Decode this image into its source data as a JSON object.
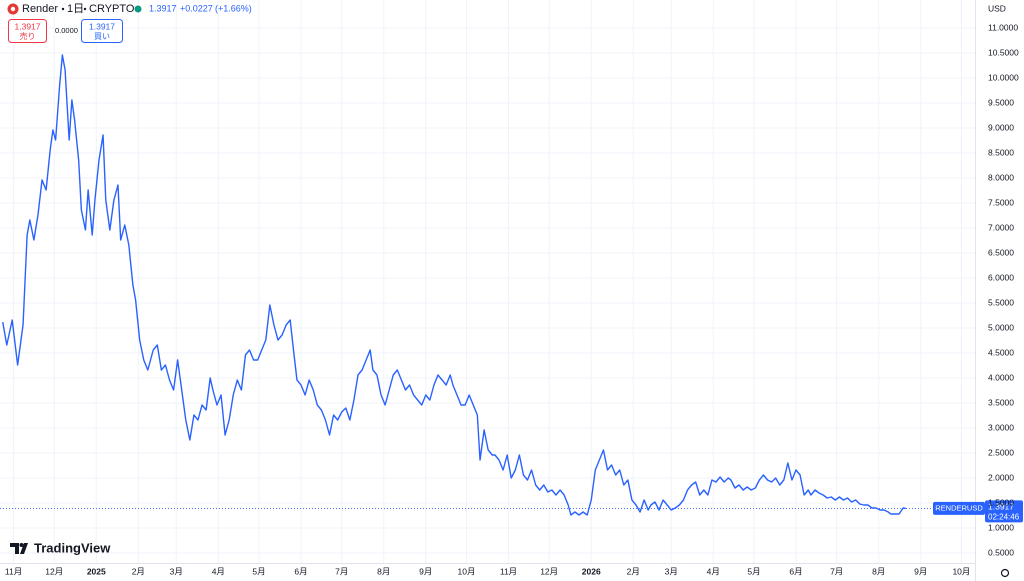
{
  "chart_data": {
    "type": "line",
    "symbol": "Render",
    "interval": "1日",
    "exchange": "CRYPTO",
    "last_value": 1.3917,
    "change": "+0.0227",
    "change_pct": "(+1.66%)",
    "sell_label": "売り",
    "buy_label": "買い",
    "spread": "0.0000",
    "currency": "USD",
    "countdown": "02:24:46",
    "brand": "TradingView",
    "grid": true,
    "xlim": [
      -10,
      709
    ],
    "ylim": [
      0.3,
      11.56
    ],
    "xticks": [
      {
        "value": 0,
        "label": "11月"
      },
      {
        "value": 30,
        "label": "12月"
      },
      {
        "value": 61,
        "label": "2025"
      },
      {
        "value": 92,
        "label": "2月"
      },
      {
        "value": 120,
        "label": "3月"
      },
      {
        "value": 151,
        "label": "4月"
      },
      {
        "value": 181,
        "label": "5月"
      },
      {
        "value": 212,
        "label": "6月"
      },
      {
        "value": 242,
        "label": "7月"
      },
      {
        "value": 273,
        "label": "8月"
      },
      {
        "value": 304,
        "label": "9月"
      },
      {
        "value": 334,
        "label": "10月"
      },
      {
        "value": 365,
        "label": "11月"
      },
      {
        "value": 395,
        "label": "12月"
      },
      {
        "value": 426,
        "label": "2026"
      },
      {
        "value": 457,
        "label": "2月"
      },
      {
        "value": 485,
        "label": "3月"
      },
      {
        "value": 516,
        "label": "4月"
      },
      {
        "value": 546,
        "label": "5月"
      },
      {
        "value": 577,
        "label": "6月"
      },
      {
        "value": 607,
        "label": "7月"
      },
      {
        "value": 638,
        "label": "8月"
      },
      {
        "value": 669,
        "label": "9月"
      },
      {
        "value": 699,
        "label": "10月"
      }
    ],
    "yticks": [
      {
        "value": 0.5,
        "label": "0.5000"
      },
      {
        "value": 1,
        "label": "1.0000"
      },
      {
        "value": 1.5,
        "label": "1.5000"
      },
      {
        "value": 2,
        "label": "2.0000"
      },
      {
        "value": 2.5,
        "label": "2.5000"
      },
      {
        "value": 3,
        "label": "3.0000"
      },
      {
        "value": 3.5,
        "label": "3.5000"
      },
      {
        "value": 4,
        "label": "4.0000"
      },
      {
        "value": 4.5,
        "label": "4.5000"
      },
      {
        "value": 5,
        "label": "5.0000"
      },
      {
        "value": 5.5,
        "label": "5.5000"
      },
      {
        "value": 6,
        "label": "6.0000"
      },
      {
        "value": 6.5,
        "label": "6.5000"
      },
      {
        "value": 7,
        "label": "7.0000"
      },
      {
        "value": 7.5,
        "label": "7.5000"
      },
      {
        "value": 8,
        "label": "8.0000"
      },
      {
        "value": 8.5,
        "label": "8.5000"
      },
      {
        "value": 9,
        "label": "9.0000"
      },
      {
        "value": 9.5,
        "label": "9.5000"
      },
      {
        "value": 10,
        "label": "10.0000"
      },
      {
        "value": 10.5,
        "label": "10.5000"
      },
      {
        "value": 11,
        "label": "11.0000"
      }
    ],
    "x": [
      -8,
      -5,
      -1,
      3,
      7,
      10,
      12,
      15,
      18,
      21,
      24,
      27,
      29,
      31,
      34,
      36,
      38,
      41,
      43,
      45,
      48,
      50,
      53,
      55,
      58,
      60,
      63,
      66,
      68,
      71,
      74,
      77,
      79,
      82,
      85,
      88,
      90,
      93,
      96,
      99,
      103,
      106,
      109,
      112,
      115,
      118,
      121,
      124,
      127,
      130,
      133,
      136,
      139,
      142,
      145,
      147,
      150,
      153,
      156,
      159,
      162,
      165,
      168,
      171,
      174,
      177,
      180,
      183,
      186,
      189,
      192,
      195,
      198,
      201,
      204,
      206,
      209,
      212,
      215,
      218,
      221,
      224,
      227,
      230,
      233,
      236,
      239,
      242,
      245,
      248,
      251,
      254,
      257,
      260,
      263,
      265,
      268,
      271,
      274,
      277,
      280,
      283,
      286,
      289,
      292,
      295,
      298,
      301,
      304,
      307,
      310,
      313,
      316,
      319,
      322,
      324,
      327,
      330,
      333,
      336,
      339,
      342,
      344,
      347,
      350,
      353,
      355,
      358,
      361,
      364,
      367,
      370,
      373,
      376,
      379,
      382,
      385,
      388,
      391,
      394,
      397,
      400,
      403,
      406,
      409,
      411,
      414,
      417,
      420,
      423,
      426,
      429,
      432,
      435,
      438,
      441,
      444,
      447,
      450,
      453,
      456,
      459,
      462,
      465,
      468,
      470,
      473,
      476,
      479,
      482,
      485,
      488,
      491,
      494,
      497,
      500,
      503,
      506,
      509,
      512,
      515,
      518,
      521,
      524,
      527,
      529,
      532,
      535,
      538,
      541,
      544,
      547,
      550,
      553,
      556,
      559,
      562,
      565,
      568,
      571,
      574,
      577,
      580,
      583,
      586,
      588,
      591,
      594,
      597,
      600,
      603,
      606,
      609,
      612,
      615,
      618,
      621,
      624,
      627,
      630,
      633,
      636,
      639,
      642,
      645,
      647,
      650,
      653,
      656,
      658
    ],
    "series": [
      {
        "name": "RENDERUSD",
        "color": "#2962ff",
        "values": [
          5.12,
          4.66,
          5.16,
          4.26,
          5.06,
          6.86,
          7.16,
          6.76,
          7.26,
          7.96,
          7.76,
          8.56,
          8.96,
          8.76,
          9.86,
          10.46,
          10.16,
          8.76,
          9.56,
          9.16,
          8.36,
          7.36,
          6.96,
          7.76,
          6.86,
          7.56,
          8.36,
          8.86,
          7.56,
          6.96,
          7.56,
          7.86,
          6.76,
          7.06,
          6.66,
          5.86,
          5.56,
          4.76,
          4.36,
          4.16,
          4.56,
          4.66,
          4.16,
          4.26,
          3.96,
          3.76,
          4.36,
          3.76,
          3.16,
          2.76,
          3.26,
          3.16,
          3.46,
          3.36,
          4.0,
          3.76,
          3.46,
          3.66,
          2.86,
          3.16,
          3.66,
          3.96,
          3.76,
          4.46,
          4.56,
          4.36,
          4.36,
          4.56,
          4.76,
          5.46,
          5.06,
          4.76,
          4.86,
          5.06,
          5.16,
          4.66,
          3.96,
          3.86,
          3.66,
          3.96,
          3.76,
          3.46,
          3.36,
          3.16,
          2.86,
          3.26,
          3.16,
          3.32,
          3.4,
          3.16,
          3.56,
          4.06,
          4.16,
          4.36,
          4.56,
          4.16,
          4.06,
          3.66,
          3.46,
          3.76,
          4.06,
          4.16,
          3.96,
          3.76,
          3.86,
          3.66,
          3.56,
          3.46,
          3.66,
          3.56,
          3.86,
          4.06,
          3.96,
          3.86,
          4.06,
          3.86,
          3.66,
          3.46,
          3.46,
          3.66,
          3.46,
          3.26,
          2.36,
          2.96,
          2.56,
          2.46,
          2.46,
          2.36,
          2.16,
          2.46,
          2.0,
          2.16,
          2.46,
          2.06,
          1.96,
          2.16,
          1.86,
          1.76,
          1.86,
          1.72,
          1.76,
          1.66,
          1.76,
          1.66,
          1.46,
          1.26,
          1.32,
          1.26,
          1.32,
          1.26,
          1.56,
          2.16,
          2.36,
          2.56,
          2.16,
          2.26,
          2.06,
          2.16,
          1.86,
          1.96,
          1.56,
          1.46,
          1.32,
          1.56,
          1.36,
          1.46,
          1.52,
          1.36,
          1.56,
          1.46,
          1.36,
          1.4,
          1.46,
          1.56,
          1.76,
          1.86,
          1.92,
          1.66,
          1.76,
          1.66,
          1.96,
          1.92,
          2.02,
          1.92,
          2.0,
          1.96,
          1.8,
          1.86,
          1.76,
          1.82,
          1.76,
          1.8,
          1.96,
          2.06,
          1.96,
          1.92,
          2.0,
          1.86,
          1.96,
          2.3,
          1.96,
          2.16,
          2.06,
          1.66,
          1.76,
          1.66,
          1.76,
          1.7,
          1.66,
          1.6,
          1.62,
          1.56,
          1.62,
          1.56,
          1.6,
          1.52,
          1.56,
          1.48,
          1.46,
          1.46,
          1.4,
          1.4,
          1.36,
          1.36,
          1.32,
          1.28,
          1.28,
          1.28,
          1.4,
          1.39
        ]
      }
    ]
  }
}
